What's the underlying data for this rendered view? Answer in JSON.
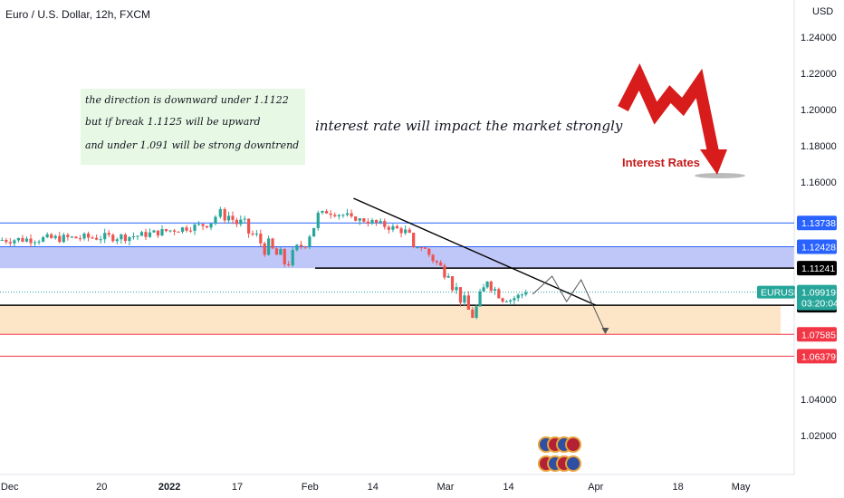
{
  "header": {
    "title": "Euro / U.S. Dollar, 12h, FXCM",
    "currency": "USD"
  },
  "annotations": {
    "box_lines": [
      "the direction is downward under 1.1122",
      "but if break 1.1125 will be upward",
      "and under 1.091 will be strong downtrend"
    ],
    "main_note": "interest rate will impact the market strongly",
    "graphic_label": "Interest Rates"
  },
  "colors": {
    "up": "#26a69a",
    "down": "#ef5350",
    "resistance_zone": "#aab4f7",
    "support_zone": "#fde2bd",
    "note_box": "#e7f8e4",
    "blue_line": "#2962ff",
    "red_line": "#f23645",
    "green_tag": "#26a69a",
    "arrow_red": "#d81b1b"
  },
  "chart_data": {
    "type": "candlestick",
    "title": "Euro / U.S. Dollar, 12h, FXCM",
    "ylabel": "USD",
    "ylim": [
      1.0,
      1.26
    ],
    "y_ticks": [
      "1.24000",
      "1.22000",
      "1.20000",
      "1.18000",
      "1.16000",
      "1.04000",
      "1.02000"
    ],
    "x_ticks": [
      "Dec",
      "20",
      "2022",
      "17",
      "Feb",
      "14",
      "Mar",
      "14",
      "Apr",
      "18",
      "May"
    ],
    "x_range": [
      "2021-11-29",
      "2022-05-12"
    ],
    "segments": [
      {
        "from": "2021-11-29",
        "to": "2021-12-27",
        "open": 1.128,
        "close": 1.13,
        "min": 1.124,
        "max": 1.138
      },
      {
        "from": "2021-12-27",
        "to": "2022-01-12",
        "open": 1.13,
        "close": 1.137,
        "min": 1.128,
        "max": 1.14
      },
      {
        "from": "2022-01-12",
        "to": "2022-01-14",
        "open": 1.137,
        "close": 1.145,
        "min": 1.136,
        "max": 1.148
      },
      {
        "from": "2022-01-14",
        "to": "2022-01-28",
        "open": 1.145,
        "close": 1.114,
        "min": 1.113,
        "max": 1.146
      },
      {
        "from": "2022-01-28",
        "to": "2022-02-04",
        "open": 1.114,
        "close": 1.144,
        "min": 1.113,
        "max": 1.146
      },
      {
        "from": "2022-02-04",
        "to": "2022-02-10",
        "open": 1.144,
        "close": 1.141,
        "min": 1.138,
        "max": 1.148
      },
      {
        "from": "2022-02-10",
        "to": "2022-02-22",
        "open": 1.141,
        "close": 1.132,
        "min": 1.128,
        "max": 1.14
      },
      {
        "from": "2022-02-22",
        "to": "2022-03-02",
        "open": 1.132,
        "close": 1.108,
        "min": 1.106,
        "max": 1.124
      },
      {
        "from": "2022-03-02",
        "to": "2022-03-07",
        "open": 1.108,
        "close": 1.085,
        "min": 1.08,
        "max": 1.107
      },
      {
        "from": "2022-03-07",
        "to": "2022-03-10",
        "open": 1.085,
        "close": 1.105,
        "min": 1.083,
        "max": 1.112
      },
      {
        "from": "2022-03-10",
        "to": "2022-03-14",
        "open": 1.105,
        "close": 1.094,
        "min": 1.09,
        "max": 1.108
      },
      {
        "from": "2022-03-14",
        "to": "2022-03-18",
        "open": 1.094,
        "close": 1.099,
        "min": 1.092,
        "max": 1.103
      }
    ],
    "horizontal_levels": [
      {
        "value": 1.13738,
        "label": "1.13738",
        "style": "blue"
      },
      {
        "value": 1.12428,
        "label": "1.12428",
        "style": "blue"
      },
      {
        "value": 1.11241,
        "label": "1.11241",
        "style": "black"
      },
      {
        "value": 1.09192,
        "label": "1.09192",
        "style": "black"
      },
      {
        "value": 1.07585,
        "label": "1.07585",
        "style": "red"
      },
      {
        "value": 1.06379,
        "label": "1.06379",
        "style": "red"
      }
    ],
    "current_price": {
      "symbol": "EURUSD",
      "value": "1.09919",
      "countdown": "03:20:04"
    },
    "zones": [
      {
        "from": 1.1124,
        "to": 1.1243,
        "kind": "resistance"
      },
      {
        "from": 1.0758,
        "to": 1.0919,
        "kind": "support"
      }
    ],
    "trendline": {
      "start": [
        "2022-02-10",
        1.151
      ],
      "end": [
        "2022-04-01",
        1.092
      ]
    },
    "projection": [
      [
        "2022-03-19",
        1.098
      ],
      [
        "2022-03-23",
        1.108
      ],
      [
        "2022-03-26",
        1.094
      ],
      [
        "2022-03-29",
        1.106
      ],
      [
        "2022-04-03",
        1.077
      ]
    ]
  }
}
